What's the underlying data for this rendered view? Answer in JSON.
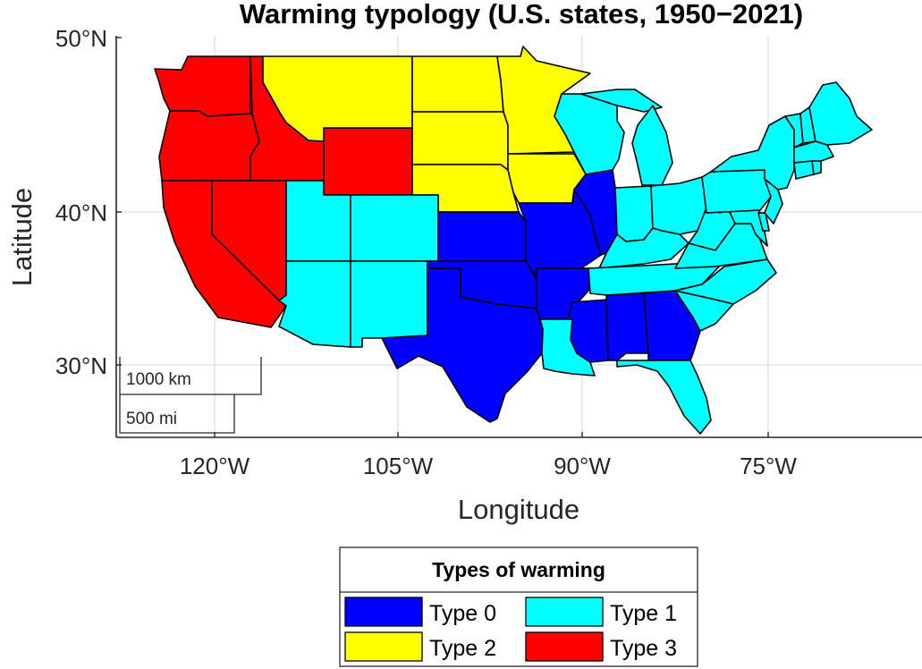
{
  "title": "Warming typology (U.S. states, 1950−2021)",
  "axes": {
    "xlabel": "Longitude",
    "ylabel": "Latitude",
    "xticks": [
      {
        "value": -120,
        "label": "120°W"
      },
      {
        "value": -105,
        "label": "105°W"
      },
      {
        "value": -90,
        "label": "90°W"
      },
      {
        "value": -75,
        "label": "75°W"
      }
    ],
    "yticks": [
      {
        "value": 30,
        "label": "30°N"
      },
      {
        "value": 40,
        "label": "40°N"
      },
      {
        "value": 50,
        "label": "50°N"
      }
    ],
    "lon_range": [
      -124.5,
      -64.0
    ],
    "lat_range": [
      24.4,
      50.0
    ],
    "grid": true
  },
  "scalebar": {
    "km_label": "1000 km",
    "mi_label": "500 mi"
  },
  "legend": {
    "title": "Types of warming",
    "placement": "below-map",
    "items": [
      {
        "label": "Type 0",
        "type": 0
      },
      {
        "label": "Type 1",
        "type": 1
      },
      {
        "label": "Type 2",
        "type": 2
      },
      {
        "label": "Type 3",
        "type": 3
      }
    ]
  },
  "colors": {
    "type0": "#0000ff",
    "type1": "#00ffff",
    "type2": "#ffff00",
    "type3": "#ff0000",
    "border": "#000000",
    "grid": "#dddddd",
    "axis": "#262626"
  },
  "chart_data": {
    "type": "choropleth",
    "region": "contiguous U.S. states",
    "period": "1950–2021",
    "categories": [
      "Type 0",
      "Type 1",
      "Type 2",
      "Type 3"
    ],
    "states": [
      {
        "name": "Washington",
        "type": 3
      },
      {
        "name": "Oregon",
        "type": 3
      },
      {
        "name": "California",
        "type": 3
      },
      {
        "name": "Nevada",
        "type": 3
      },
      {
        "name": "Idaho",
        "type": 3
      },
      {
        "name": "Wyoming",
        "type": 3
      },
      {
        "name": "Montana",
        "type": 2
      },
      {
        "name": "North Dakota",
        "type": 2
      },
      {
        "name": "South Dakota",
        "type": 2
      },
      {
        "name": "Nebraska",
        "type": 2
      },
      {
        "name": "Minnesota",
        "type": 2
      },
      {
        "name": "Iowa",
        "type": 2
      },
      {
        "name": "Utah",
        "type": 1
      },
      {
        "name": "Colorado",
        "type": 1
      },
      {
        "name": "Arizona",
        "type": 1
      },
      {
        "name": "New Mexico",
        "type": 1
      },
      {
        "name": "Kansas",
        "type": 0
      },
      {
        "name": "Oklahoma",
        "type": 0
      },
      {
        "name": "Texas",
        "type": 0
      },
      {
        "name": "Missouri",
        "type": 0
      },
      {
        "name": "Arkansas",
        "type": 0
      },
      {
        "name": "Illinois",
        "type": 0
      },
      {
        "name": "Mississippi",
        "type": 0
      },
      {
        "name": "Alabama",
        "type": 0
      },
      {
        "name": "Georgia",
        "type": 0
      },
      {
        "name": "Louisiana",
        "type": 1
      },
      {
        "name": "Florida",
        "type": 1
      },
      {
        "name": "Wisconsin",
        "type": 1
      },
      {
        "name": "Michigan",
        "type": 1
      },
      {
        "name": "Indiana",
        "type": 1
      },
      {
        "name": "Ohio",
        "type": 1
      },
      {
        "name": "Kentucky",
        "type": 1
      },
      {
        "name": "Tennessee",
        "type": 1
      },
      {
        "name": "South Carolina",
        "type": 1
      },
      {
        "name": "North Carolina",
        "type": 1
      },
      {
        "name": "Virginia",
        "type": 1
      },
      {
        "name": "West Virginia",
        "type": 1
      },
      {
        "name": "Maryland",
        "type": 1
      },
      {
        "name": "Delaware",
        "type": 1
      },
      {
        "name": "Pennsylvania",
        "type": 1
      },
      {
        "name": "New Jersey",
        "type": 1
      },
      {
        "name": "New York",
        "type": 1
      },
      {
        "name": "Connecticut",
        "type": 1
      },
      {
        "name": "Rhode Island",
        "type": 1
      },
      {
        "name": "Massachusetts",
        "type": 1
      },
      {
        "name": "Vermont",
        "type": 1
      },
      {
        "name": "New Hampshire",
        "type": 1
      },
      {
        "name": "Maine",
        "type": 1
      }
    ]
  }
}
